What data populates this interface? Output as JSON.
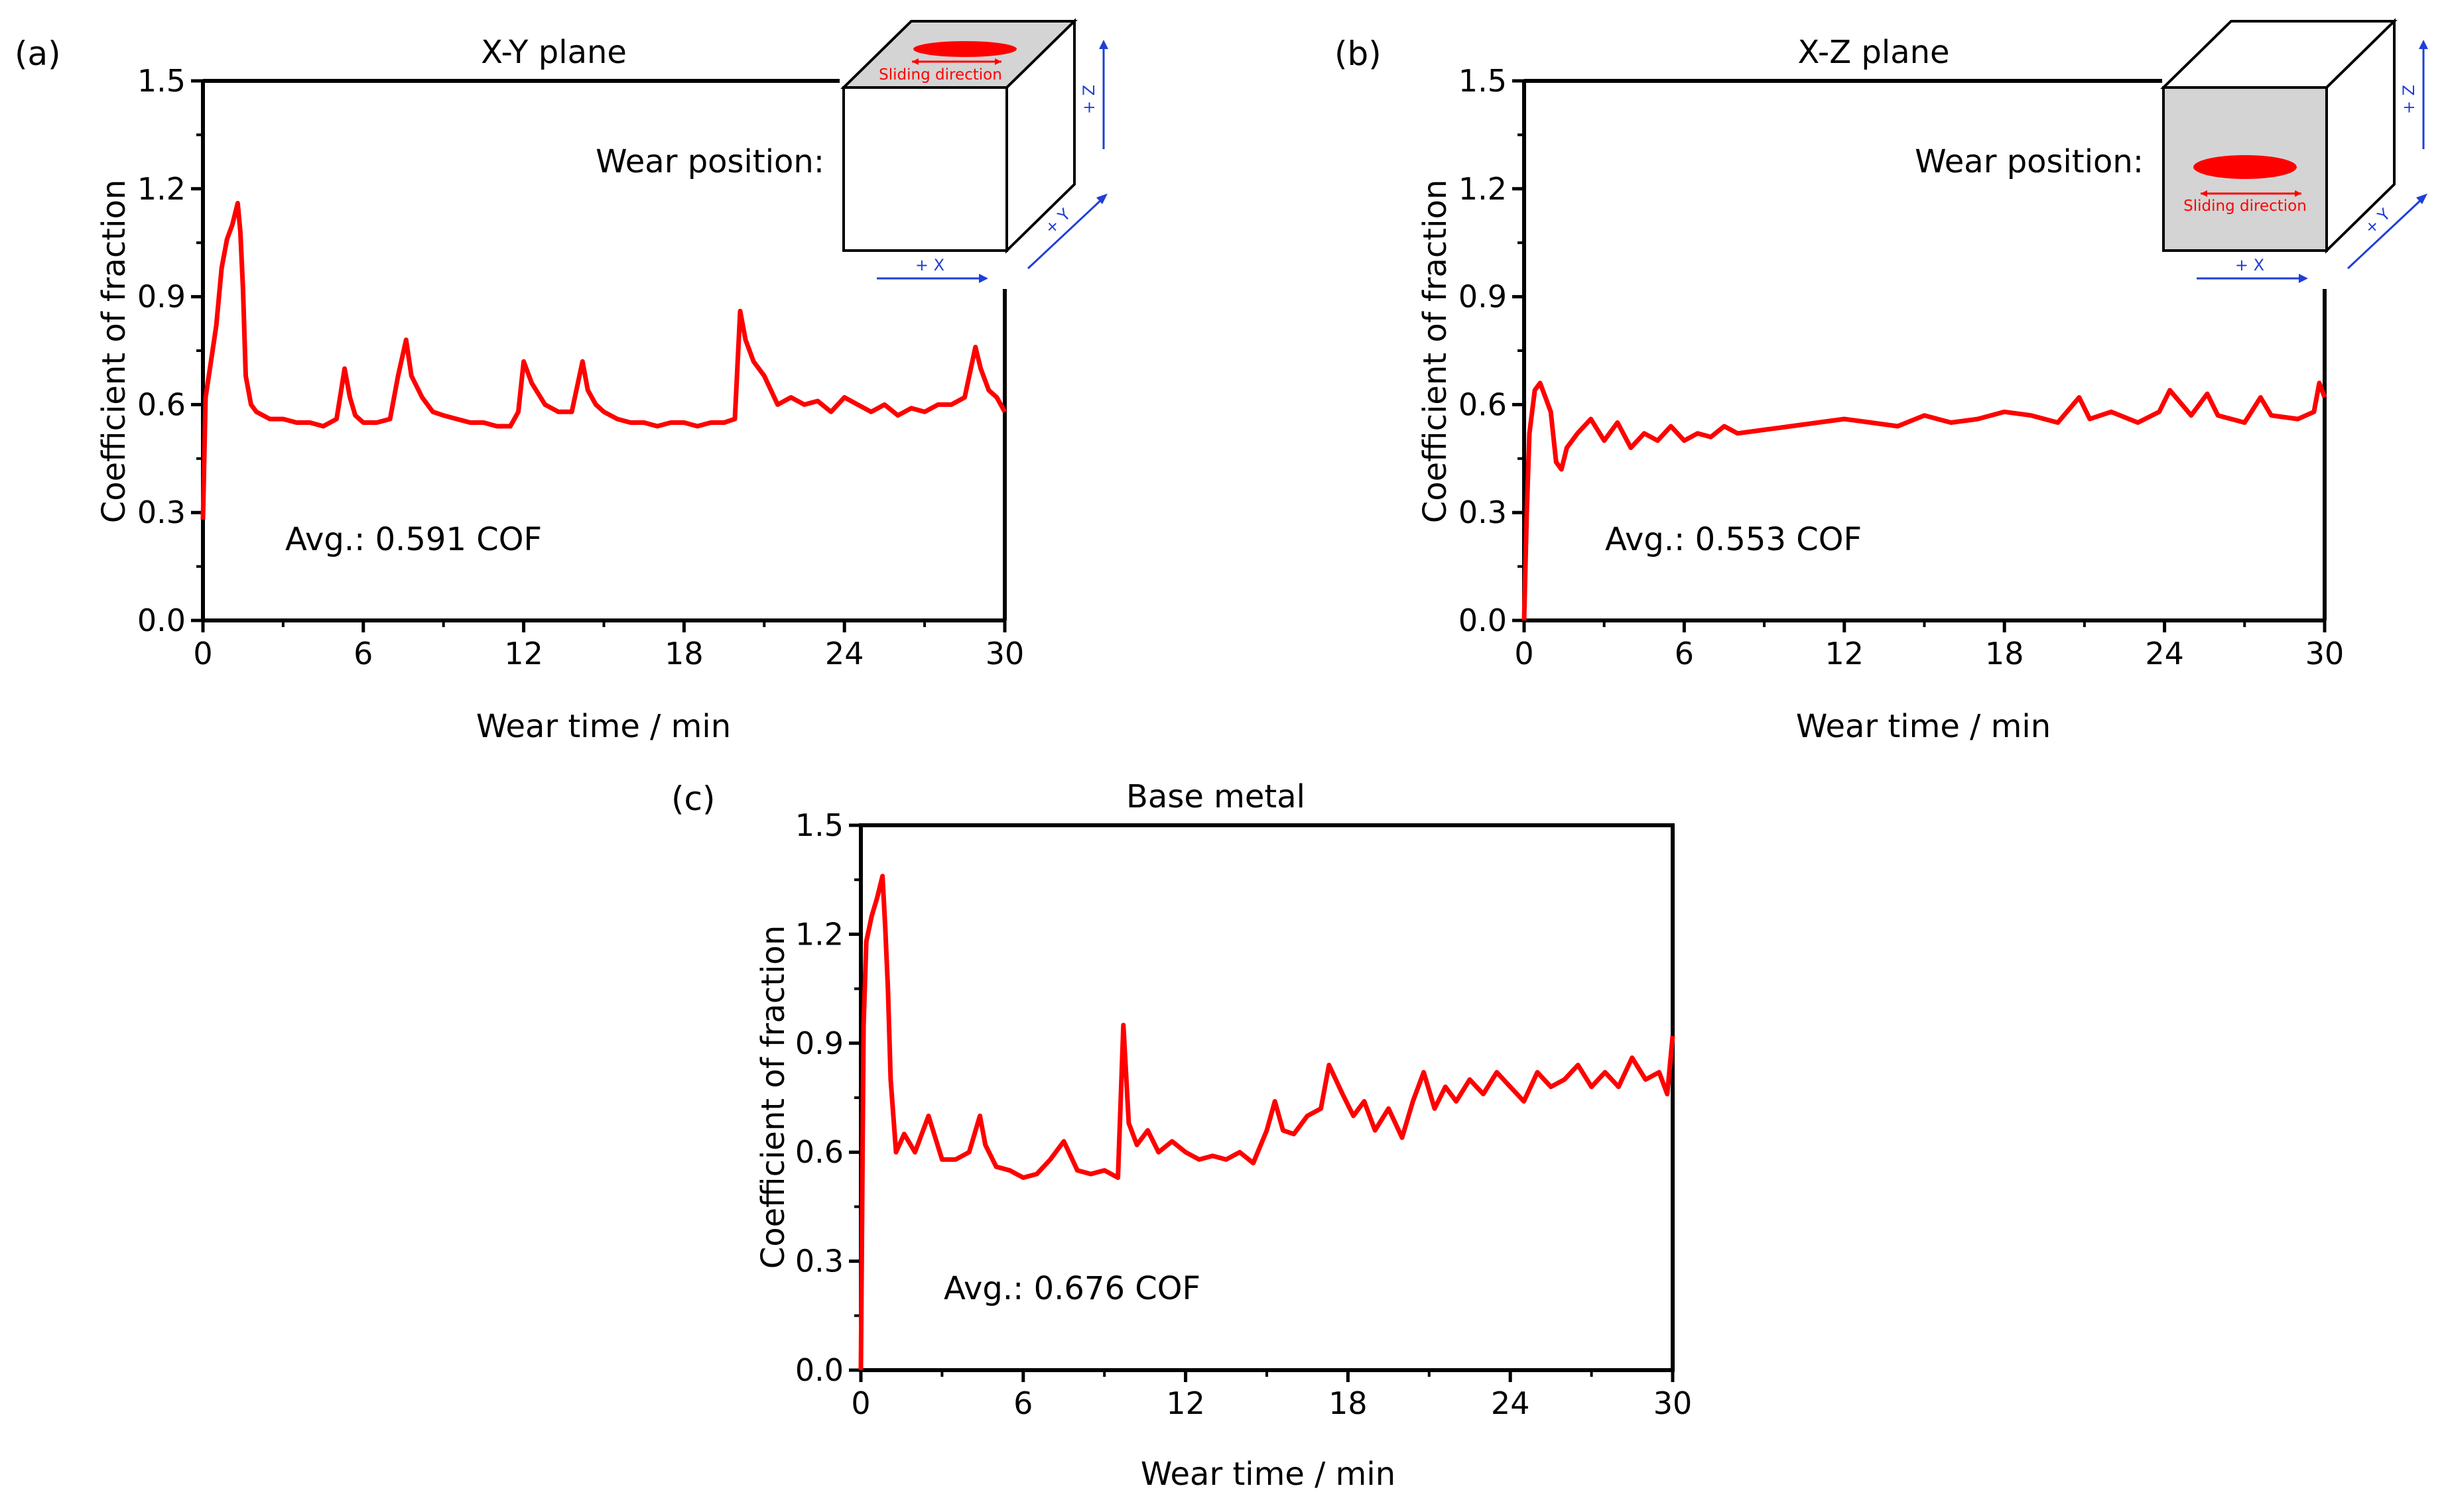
{
  "chart_data": [
    {
      "panel_label": "(a)",
      "type": "line",
      "title": "X-Y plane",
      "xlabel": "Wear time / min",
      "ylabel": "Coefficient of fraction",
      "xlim": [
        0,
        30
      ],
      "ylim": [
        0,
        1.5
      ],
      "xticks": [
        "0",
        "6",
        "12",
        "18",
        "24",
        "30"
      ],
      "yticks": [
        "0.0",
        "0.3",
        "0.6",
        "0.9",
        "1.2",
        "1.5"
      ],
      "annotation": "Avg.: 0.591 COF",
      "color": "#ff0000",
      "x": [
        0,
        0.1,
        0.3,
        0.5,
        0.7,
        0.9,
        1.1,
        1.3,
        1.4,
        1.5,
        1.6,
        1.8,
        2.0,
        2.5,
        3.0,
        3.5,
        4.0,
        4.5,
        5.0,
        5.3,
        5.5,
        5.7,
        6.0,
        6.5,
        7.0,
        7.3,
        7.6,
        7.8,
        8.2,
        8.6,
        9.0,
        9.5,
        10.0,
        10.5,
        11.0,
        11.5,
        11.8,
        12.0,
        12.3,
        12.8,
        13.3,
        13.8,
        14.2,
        14.4,
        14.7,
        15.0,
        15.5,
        16.0,
        16.5,
        17.0,
        17.5,
        18.0,
        18.5,
        19.0,
        19.5,
        19.9,
        20.1,
        20.3,
        20.6,
        21.0,
        21.5,
        22.0,
        22.5,
        23.0,
        23.5,
        24.0,
        24.5,
        25.0,
        25.5,
        26.0,
        26.5,
        27.0,
        27.5,
        28.0,
        28.5,
        28.9,
        29.1,
        29.4,
        29.7,
        30.0
      ],
      "values": [
        0.28,
        0.62,
        0.72,
        0.82,
        0.98,
        1.06,
        1.1,
        1.16,
        1.08,
        0.92,
        0.68,
        0.6,
        0.58,
        0.56,
        0.56,
        0.55,
        0.55,
        0.54,
        0.56,
        0.7,
        0.62,
        0.57,
        0.55,
        0.55,
        0.56,
        0.68,
        0.78,
        0.68,
        0.62,
        0.58,
        0.57,
        0.56,
        0.55,
        0.55,
        0.54,
        0.54,
        0.58,
        0.72,
        0.66,
        0.6,
        0.58,
        0.58,
        0.72,
        0.64,
        0.6,
        0.58,
        0.56,
        0.55,
        0.55,
        0.54,
        0.55,
        0.55,
        0.54,
        0.55,
        0.55,
        0.56,
        0.86,
        0.78,
        0.72,
        0.68,
        0.6,
        0.62,
        0.6,
        0.61,
        0.58,
        0.62,
        0.6,
        0.58,
        0.6,
        0.57,
        0.59,
        0.58,
        0.6,
        0.6,
        0.62,
        0.76,
        0.7,
        0.64,
        0.62,
        0.58
      ]
    },
    {
      "panel_label": "(b)",
      "type": "line",
      "title": "X-Z plane",
      "xlabel": "Wear time / min",
      "ylabel": "Coefficient of fraction",
      "xlim": [
        0,
        30
      ],
      "ylim": [
        0,
        1.5
      ],
      "xticks": [
        "0",
        "6",
        "12",
        "18",
        "24",
        "30"
      ],
      "yticks": [
        "0.0",
        "0.3",
        "0.6",
        "0.9",
        "1.2",
        "1.5"
      ],
      "annotation": "Avg.: 0.553 COF",
      "color": "#ff0000",
      "x": [
        0,
        0.1,
        0.2,
        0.4,
        0.6,
        0.8,
        1.0,
        1.2,
        1.4,
        1.6,
        2.0,
        2.5,
        3.0,
        3.5,
        4.0,
        4.5,
        5.0,
        5.5,
        6.0,
        6.5,
        7.0,
        7.5,
        8.0,
        9.0,
        10.0,
        11.0,
        12.0,
        13.0,
        14.0,
        15.0,
        16.0,
        17.0,
        18.0,
        19.0,
        20.0,
        20.8,
        21.2,
        22.0,
        23.0,
        23.8,
        24.2,
        25.0,
        25.6,
        26.0,
        27.0,
        27.6,
        28.0,
        29.0,
        29.6,
        29.8,
        30.0
      ],
      "values": [
        0.0,
        0.3,
        0.52,
        0.64,
        0.66,
        0.62,
        0.58,
        0.44,
        0.42,
        0.48,
        0.52,
        0.56,
        0.5,
        0.55,
        0.48,
        0.52,
        0.5,
        0.54,
        0.5,
        0.52,
        0.51,
        0.54,
        0.52,
        0.53,
        0.54,
        0.55,
        0.56,
        0.55,
        0.54,
        0.57,
        0.55,
        0.56,
        0.58,
        0.57,
        0.55,
        0.62,
        0.56,
        0.58,
        0.55,
        0.58,
        0.64,
        0.57,
        0.63,
        0.57,
        0.55,
        0.62,
        0.57,
        0.56,
        0.58,
        0.66,
        0.62
      ]
    },
    {
      "panel_label": "(c)",
      "type": "line",
      "title": "Base metal",
      "xlabel": "Wear time / min",
      "ylabel": "Coefficient of fraction",
      "xlim": [
        0,
        30
      ],
      "ylim": [
        0,
        1.5
      ],
      "xticks": [
        "0",
        "6",
        "12",
        "18",
        "24",
        "30"
      ],
      "yticks": [
        "0.0",
        "0.3",
        "0.6",
        "0.9",
        "1.2",
        "1.5"
      ],
      "annotation": "Avg.: 0.676 COF",
      "color": "#ff0000",
      "x": [
        0,
        0.1,
        0.2,
        0.4,
        0.6,
        0.8,
        0.9,
        1.0,
        1.1,
        1.3,
        1.6,
        2.0,
        2.5,
        3.0,
        3.5,
        4.0,
        4.4,
        4.6,
        5.0,
        5.5,
        6.0,
        6.5,
        7.0,
        7.5,
        8.0,
        8.5,
        9.0,
        9.5,
        9.7,
        9.9,
        10.2,
        10.6,
        11.0,
        11.5,
        12.0,
        12.5,
        13.0,
        13.5,
        14.0,
        14.5,
        15.0,
        15.3,
        15.6,
        16.0,
        16.5,
        17.0,
        17.3,
        17.8,
        18.2,
        18.6,
        19.0,
        19.5,
        20.0,
        20.4,
        20.8,
        21.2,
        21.6,
        22.0,
        22.5,
        23.0,
        23.5,
        24.0,
        24.5,
        25.0,
        25.5,
        26.0,
        26.5,
        27.0,
        27.5,
        28.0,
        28.5,
        29.0,
        29.5,
        29.8,
        30.0
      ],
      "values": [
        0.0,
        0.95,
        1.18,
        1.25,
        1.3,
        1.36,
        1.22,
        1.05,
        0.8,
        0.6,
        0.65,
        0.6,
        0.7,
        0.58,
        0.58,
        0.6,
        0.7,
        0.62,
        0.56,
        0.55,
        0.53,
        0.54,
        0.58,
        0.63,
        0.55,
        0.54,
        0.55,
        0.53,
        0.95,
        0.68,
        0.62,
        0.66,
        0.6,
        0.63,
        0.6,
        0.58,
        0.59,
        0.58,
        0.6,
        0.57,
        0.66,
        0.74,
        0.66,
        0.65,
        0.7,
        0.72,
        0.84,
        0.76,
        0.7,
        0.74,
        0.66,
        0.72,
        0.64,
        0.74,
        0.82,
        0.72,
        0.78,
        0.74,
        0.8,
        0.76,
        0.82,
        0.78,
        0.74,
        0.82,
        0.78,
        0.8,
        0.84,
        0.78,
        0.82,
        0.78,
        0.86,
        0.8,
        0.82,
        0.76,
        0.92
      ]
    }
  ],
  "inset_a": {
    "label": "Wear position:",
    "sliding_direction": "Sliding direction",
    "axis_x": "+ X",
    "axis_y": "+ Y",
    "axis_z": "+ Z"
  },
  "inset_b": {
    "label": "Wear position:",
    "sliding_direction": "Sliding direction",
    "axis_x": "+ X",
    "axis_y": "+ Y",
    "axis_z": "+ Z"
  },
  "colors": {
    "line": "#ff0000",
    "axis": "#000000",
    "arrow": "#1f3fd6",
    "shaded_face": "#d4d4d4"
  }
}
